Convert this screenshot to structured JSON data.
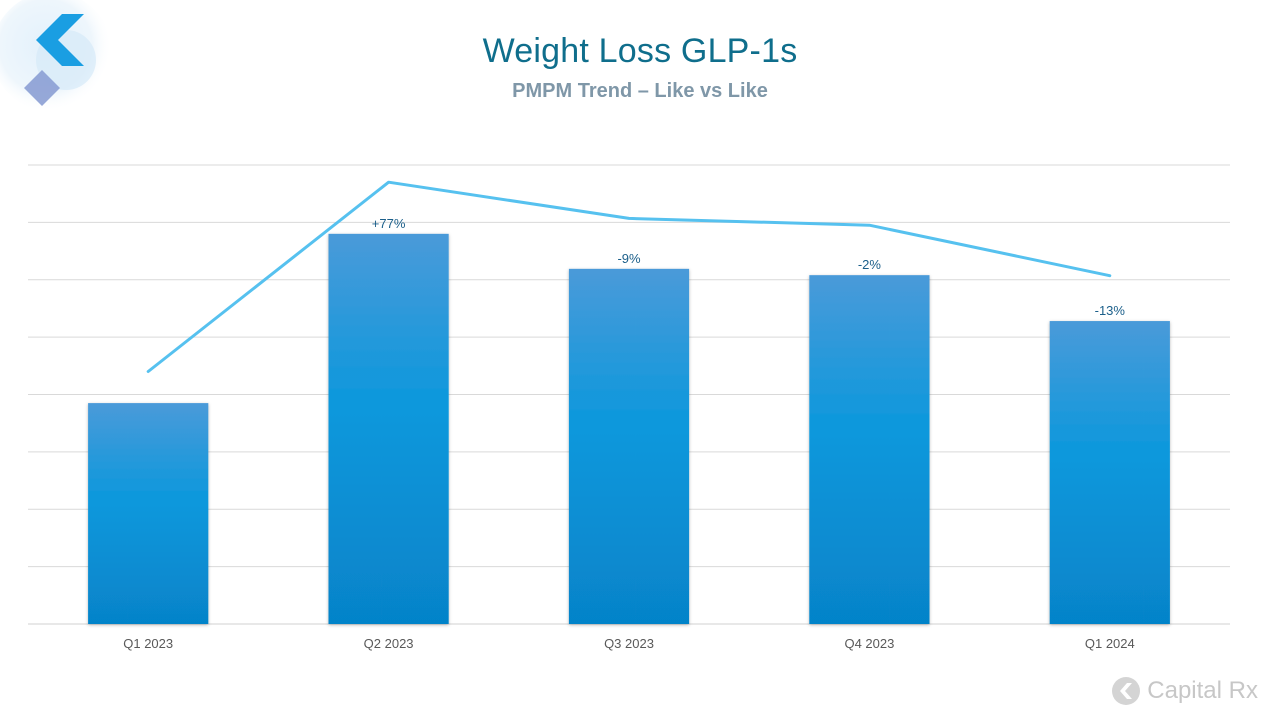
{
  "slide": {
    "title": "Weight Loss GLP-1s",
    "subtitle": "PMPM Trend – Like vs Like",
    "brand": "Capital Rx",
    "colors": {
      "title": "#0f6e8c",
      "bar_top": "#4a9ad9",
      "bar_mid": "#0a98dc",
      "bar_bottom": "#0683c9",
      "line": "#56c1ef",
      "grid": "#d9d9d9"
    }
  },
  "chart_data": {
    "type": "bar",
    "categories": [
      "Q1 2023",
      "Q2 2023",
      "Q3 2023",
      "Q4 2023",
      "Q1 2024"
    ],
    "series": [
      {
        "type": "bar",
        "values": [
          3.85,
          6.8,
          6.19,
          6.08,
          5.28
        ],
        "data_labels": [
          "",
          "+77%",
          "-9%",
          "-2%",
          "-13%"
        ]
      },
      {
        "type": "line",
        "values": [
          4.4,
          7.7,
          7.07,
          6.95,
          6.07
        ]
      }
    ],
    "ylim": [
      0,
      8
    ],
    "grid": true,
    "y_ticks_visible": false,
    "legend": "none"
  }
}
